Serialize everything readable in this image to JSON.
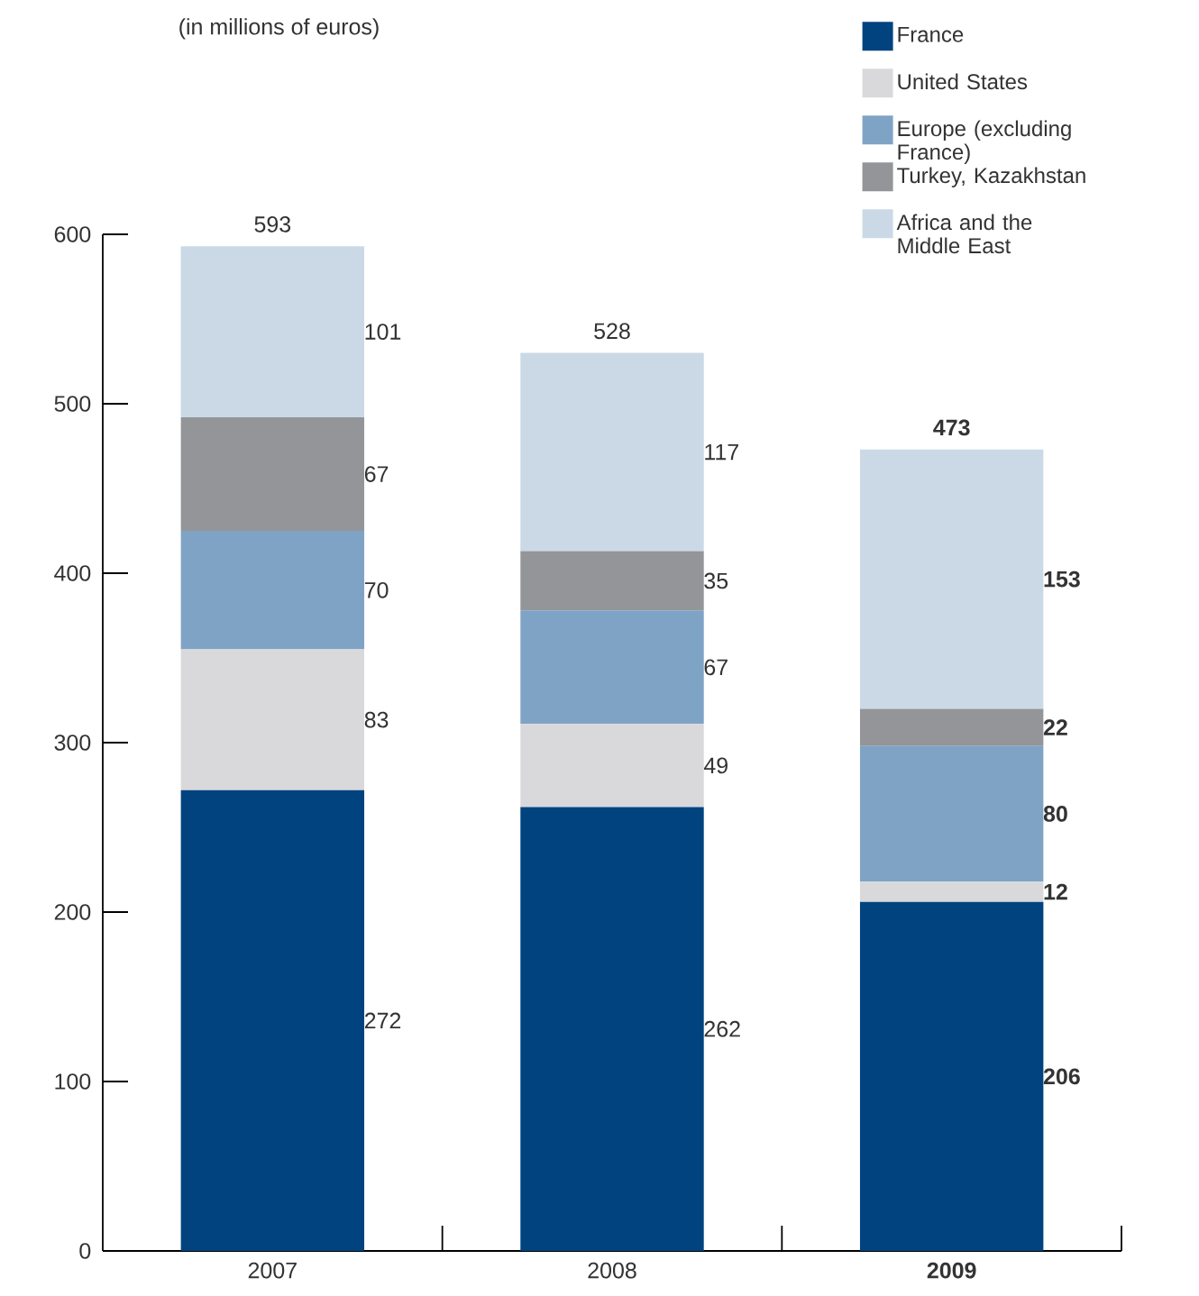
{
  "chart_data": {
    "type": "bar",
    "title": "(in millions of euros)",
    "stacked": true,
    "categories": [
      "2007",
      "2008",
      "2009"
    ],
    "series": [
      {
        "name": "France",
        "color": "#00437f",
        "values": [
          272,
          262,
          206
        ]
      },
      {
        "name": "United States",
        "color": "#d9d9db",
        "values": [
          83,
          49,
          12
        ]
      },
      {
        "name": "Europe (excluding France)",
        "color": "#7fa3c5",
        "values": [
          70,
          67,
          80
        ]
      },
      {
        "name": "Turkey, Kazakhstan",
        "color": "#939598",
        "values": [
          67,
          35,
          22
        ]
      },
      {
        "name": "Africa and the Middle East",
        "color": "#cbd9e6",
        "values": [
          101,
          117,
          153
        ]
      }
    ],
    "totals": [
      "593",
      "528",
      "473"
    ],
    "data_labels": true,
    "ylim": [
      0,
      600
    ],
    "yticks": [
      0,
      100,
      200,
      300,
      400,
      500,
      600
    ],
    "grid": false,
    "legend": "top right"
  }
}
